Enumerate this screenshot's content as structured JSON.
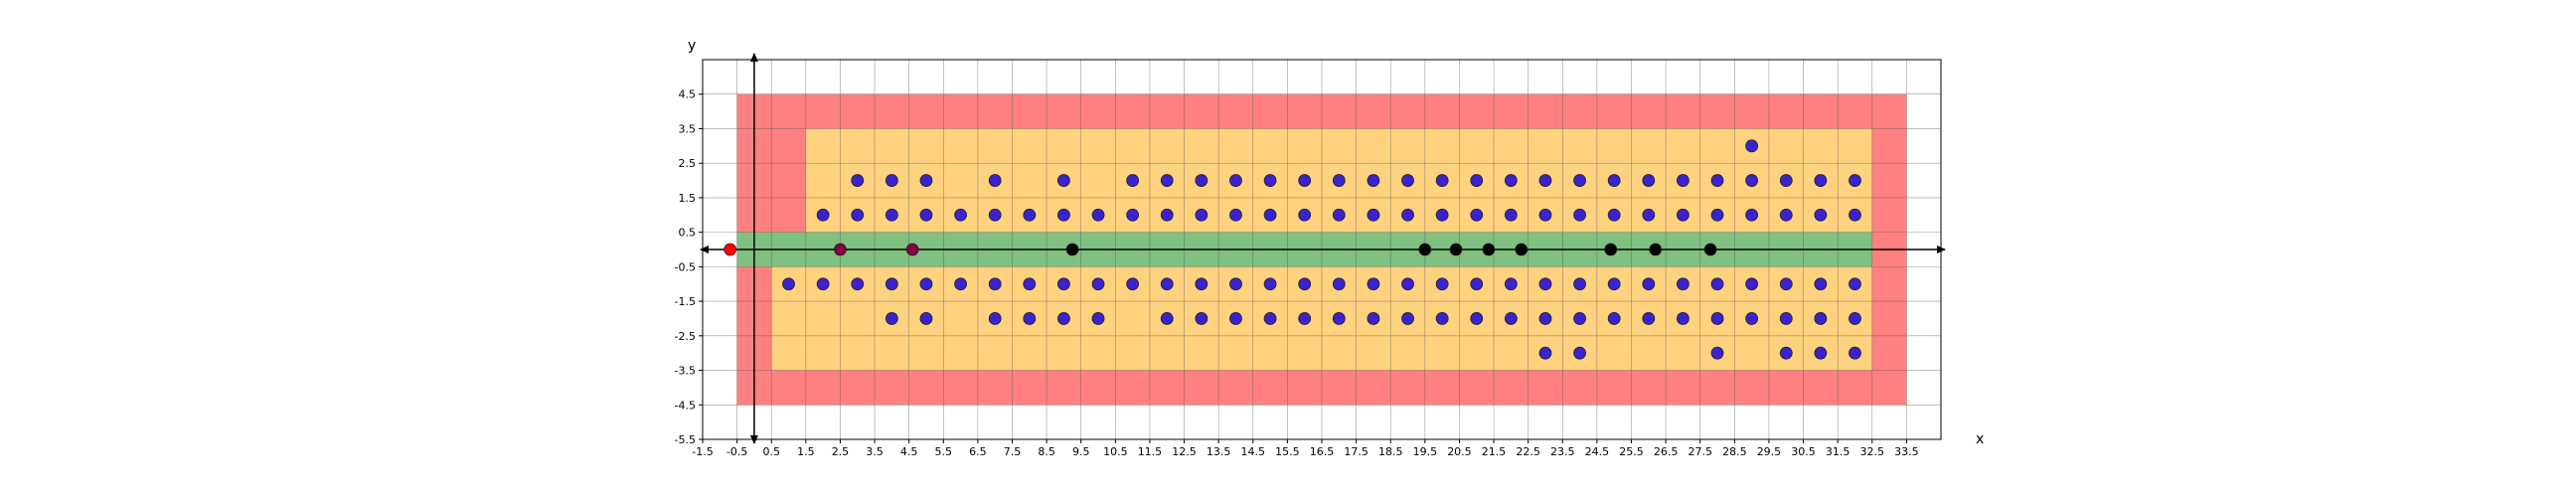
{
  "chart_data": {
    "type": "scatter",
    "title": "",
    "xlabel": "x",
    "ylabel": "y",
    "xlim": [
      -1.5,
      34.5
    ],
    "ylim": [
      -5.5,
      5.5
    ],
    "grid": true,
    "x_ticks": [
      "-1.5",
      "-0.5",
      "0.5",
      "1.5",
      "2.5",
      "3.5",
      "4.5",
      "5.5",
      "6.5",
      "7.5",
      "8.5",
      "9.5",
      "10.5",
      "11.5",
      "12.5",
      "13.5",
      "14.5",
      "15.5",
      "16.5",
      "17.5",
      "18.5",
      "19.5",
      "20.5",
      "21.5",
      "22.5",
      "23.5",
      "24.5",
      "25.5",
      "26.5",
      "27.5",
      "28.5",
      "29.5",
      "30.5",
      "31.5",
      "32.5",
      "33.5"
    ],
    "y_ticks": [
      "-5.5",
      "-4.5",
      "-3.5",
      "-2.5",
      "-1.5",
      "-0.5",
      "0.5",
      "1.5",
      "2.5",
      "3.5",
      "4.5"
    ],
    "regions": [
      {
        "name": "outer",
        "color": "#ff8080",
        "x": [
          -0.5,
          33.5
        ],
        "y": [
          -4.5,
          4.5
        ]
      },
      {
        "name": "middle-top",
        "color": "#ffd280",
        "x": [
          1.5,
          32.5
        ],
        "y": [
          0.5,
          3.5
        ]
      },
      {
        "name": "middle-bottom",
        "color": "#ffd280",
        "x": [
          0.5,
          32.5
        ],
        "y": [
          -3.5,
          -0.5
        ]
      },
      {
        "name": "inner",
        "color": "#80c080",
        "x": [
          -0.5,
          32.5
        ],
        "y": [
          -0.5,
          0.5
        ]
      }
    ],
    "series": [
      {
        "color": "#3a22cc",
        "points": [
          [
            3,
            2
          ],
          [
            4,
            2
          ],
          [
            5,
            2
          ],
          [
            7,
            2
          ],
          [
            9,
            2
          ],
          [
            11,
            2
          ],
          [
            12,
            2
          ],
          [
            13,
            2
          ],
          [
            14,
            2
          ],
          [
            15,
            2
          ],
          [
            16,
            2
          ],
          [
            17,
            2
          ],
          [
            18,
            2
          ],
          [
            19,
            2
          ],
          [
            20,
            2
          ],
          [
            21,
            2
          ],
          [
            22,
            2
          ],
          [
            23,
            2
          ],
          [
            24,
            2
          ],
          [
            25,
            2
          ],
          [
            26,
            2
          ],
          [
            27,
            2
          ],
          [
            28,
            2
          ],
          [
            29,
            2
          ],
          [
            30,
            2
          ],
          [
            31,
            2
          ],
          [
            32,
            2
          ],
          [
            29,
            3
          ],
          [
            2,
            1
          ],
          [
            3,
            1
          ],
          [
            4,
            1
          ],
          [
            5,
            1
          ],
          [
            6,
            1
          ],
          [
            7,
            1
          ],
          [
            8,
            1
          ],
          [
            9,
            1
          ],
          [
            10,
            1
          ],
          [
            11,
            1
          ],
          [
            12,
            1
          ],
          [
            13,
            1
          ],
          [
            14,
            1
          ],
          [
            15,
            1
          ],
          [
            16,
            1
          ],
          [
            17,
            1
          ],
          [
            18,
            1
          ],
          [
            19,
            1
          ],
          [
            20,
            1
          ],
          [
            21,
            1
          ],
          [
            22,
            1
          ],
          [
            23,
            1
          ],
          [
            24,
            1
          ],
          [
            25,
            1
          ],
          [
            26,
            1
          ],
          [
            27,
            1
          ],
          [
            28,
            1
          ],
          [
            29,
            1
          ],
          [
            30,
            1
          ],
          [
            31,
            1
          ],
          [
            32,
            1
          ],
          [
            1,
            -1
          ],
          [
            2,
            -1
          ],
          [
            3,
            -1
          ],
          [
            4,
            -1
          ],
          [
            5,
            -1
          ],
          [
            6,
            -1
          ],
          [
            7,
            -1
          ],
          [
            8,
            -1
          ],
          [
            9,
            -1
          ],
          [
            10,
            -1
          ],
          [
            11,
            -1
          ],
          [
            12,
            -1
          ],
          [
            13,
            -1
          ],
          [
            14,
            -1
          ],
          [
            15,
            -1
          ],
          [
            16,
            -1
          ],
          [
            17,
            -1
          ],
          [
            18,
            -1
          ],
          [
            19,
            -1
          ],
          [
            20,
            -1
          ],
          [
            21,
            -1
          ],
          [
            22,
            -1
          ],
          [
            23,
            -1
          ],
          [
            24,
            -1
          ],
          [
            25,
            -1
          ],
          [
            26,
            -1
          ],
          [
            27,
            -1
          ],
          [
            28,
            -1
          ],
          [
            29,
            -1
          ],
          [
            30,
            -1
          ],
          [
            31,
            -1
          ],
          [
            32,
            -1
          ],
          [
            4,
            -2
          ],
          [
            5,
            -2
          ],
          [
            7,
            -2
          ],
          [
            8,
            -2
          ],
          [
            9,
            -2
          ],
          [
            10,
            -2
          ],
          [
            12,
            -2
          ],
          [
            13,
            -2
          ],
          [
            14,
            -2
          ],
          [
            15,
            -2
          ],
          [
            16,
            -2
          ],
          [
            17,
            -2
          ],
          [
            18,
            -2
          ],
          [
            19,
            -2
          ],
          [
            20,
            -2
          ],
          [
            21,
            -2
          ],
          [
            22,
            -2
          ],
          [
            23,
            -2
          ],
          [
            24,
            -2
          ],
          [
            25,
            -2
          ],
          [
            26,
            -2
          ],
          [
            27,
            -2
          ],
          [
            28,
            -2
          ],
          [
            29,
            -2
          ],
          [
            30,
            -2
          ],
          [
            31,
            -2
          ],
          [
            32,
            -2
          ],
          [
            23,
            -3
          ],
          [
            24,
            -3
          ],
          [
            28,
            -3
          ],
          [
            30,
            -3
          ],
          [
            31,
            -3
          ],
          [
            32,
            -3
          ]
        ]
      },
      {
        "color": "#000000",
        "points": [
          [
            9.25,
            0
          ],
          [
            19.5,
            0
          ],
          [
            20.4,
            0
          ],
          [
            21.35,
            0
          ],
          [
            22.3,
            0
          ],
          [
            24.9,
            0
          ],
          [
            26.2,
            0
          ],
          [
            27.8,
            0
          ]
        ]
      },
      {
        "color": "#800040",
        "points": [
          [
            2.5,
            0
          ],
          [
            4.6,
            0
          ]
        ]
      },
      {
        "color": "#ff0000",
        "points": [
          [
            -0.7,
            0
          ]
        ]
      }
    ]
  }
}
